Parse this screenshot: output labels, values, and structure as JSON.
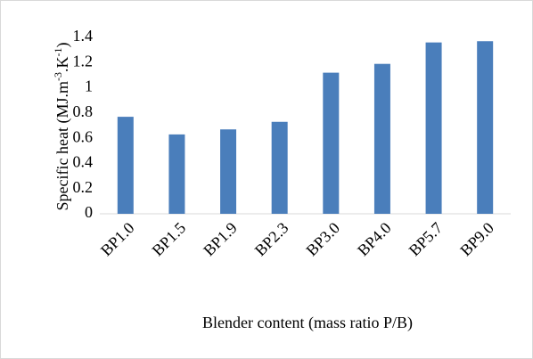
{
  "chart_data": {
    "type": "bar",
    "ylabel": [
      "Specific heat (MJ.m",
      "-3",
      ".K",
      "-1",
      ")"
    ],
    "xlabel": "Blender content (mass ratio P/B)",
    "categories": [
      "BP1.0",
      "BP1.5",
      "BP1.9",
      "BP2.3",
      "BP3.0",
      "BP4.0",
      "BP5.7",
      "BP9.0"
    ],
    "values": [
      0.77,
      0.63,
      0.67,
      0.73,
      1.12,
      1.19,
      1.36,
      1.37
    ],
    "color": "#4a7ebb",
    "ylim": [
      0,
      1.4
    ],
    "yticks": [
      0,
      0.2,
      0.4,
      0.6,
      0.8,
      1,
      1.2,
      1.4
    ],
    "grid": false
  }
}
